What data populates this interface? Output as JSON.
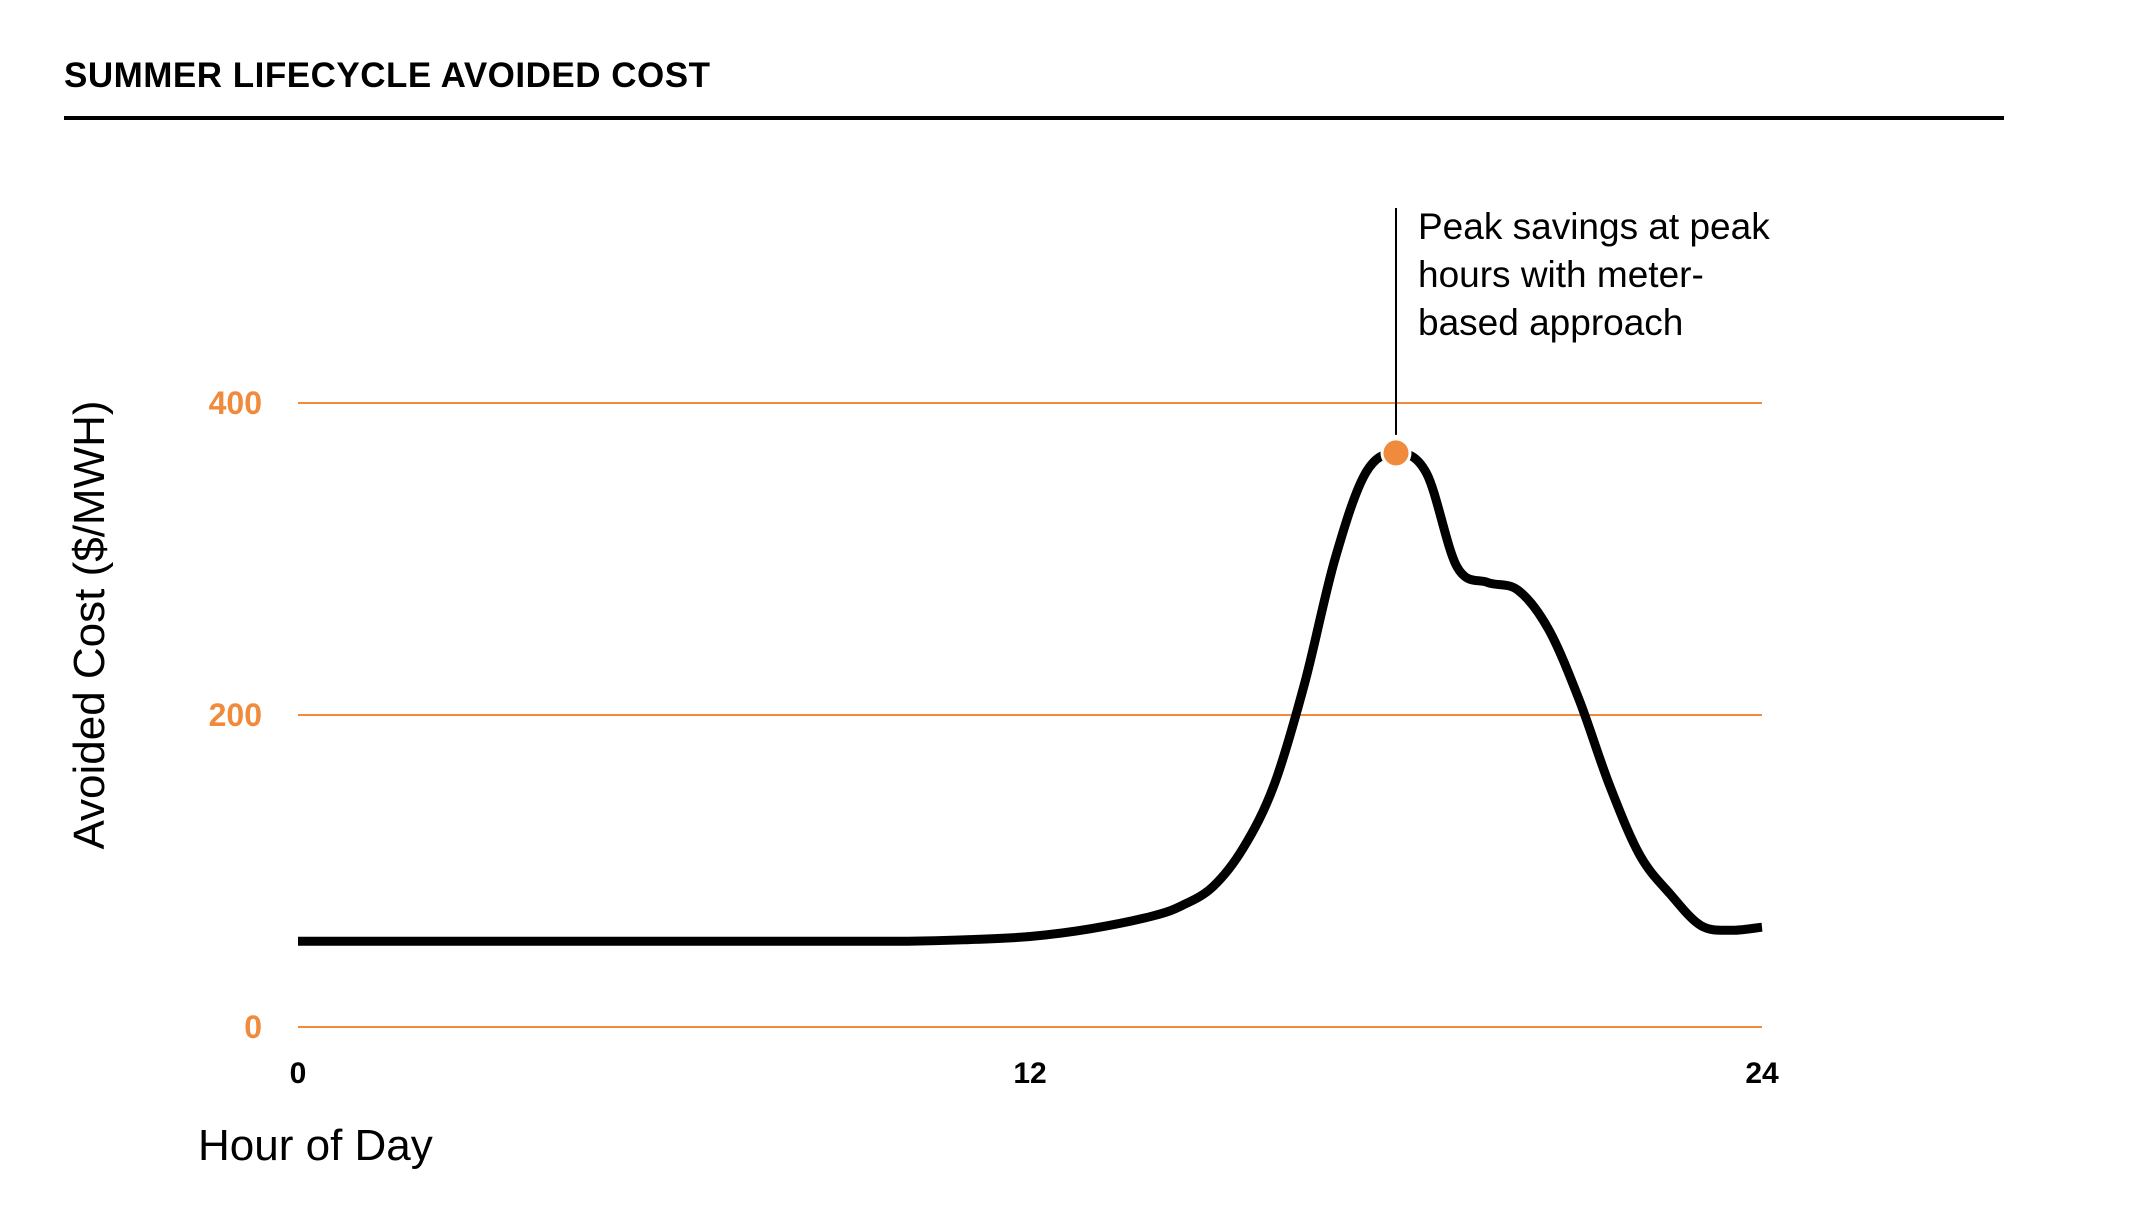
{
  "header": {
    "title": "SUMMER LIFECYCLE AVOIDED COST"
  },
  "colors": {
    "accent": "#f08a3c",
    "line": "#000000",
    "grid": "#f08a3c"
  },
  "chart_data": {
    "type": "line",
    "title": "SUMMER LIFECYCLE AVOIDED COST",
    "xlabel": "Hour of Day",
    "ylabel": "Avoided Cost ($/MWH)",
    "xlim": [
      0,
      24
    ],
    "ylim": [
      0,
      400
    ],
    "x_ticks": [
      {
        "value": 0,
        "label": "0"
      },
      {
        "value": 12,
        "label": "12"
      },
      {
        "value": 24,
        "label": "24"
      }
    ],
    "y_ticks": [
      {
        "value": 0,
        "label": "0"
      },
      {
        "value": 200,
        "label": "200"
      },
      {
        "value": 400,
        "label": "400"
      }
    ],
    "grid": "horizontal",
    "series": [
      {
        "x": [
          0,
          2,
          4,
          6,
          8,
          10,
          11,
          12,
          13,
          14,
          14.5,
          15,
          15.5,
          16,
          16.5,
          17,
          17.5,
          18,
          18.5,
          19,
          19.5,
          20,
          20.5,
          21,
          21.5,
          22,
          22.5,
          23,
          23.5,
          24
        ],
        "values": [
          55,
          55,
          55,
          55,
          55,
          55,
          56,
          58,
          63,
          71,
          78,
          90,
          115,
          155,
          220,
          300,
          355,
          368,
          355,
          295,
          285,
          280,
          255,
          210,
          155,
          110,
          85,
          65,
          62,
          64
        ]
      }
    ],
    "highlight": {
      "x": 18,
      "y": 368
    },
    "annotations": [
      {
        "x": 18,
        "lines": [
          "Peak savings at peak",
          "hours with meter-",
          "based approach"
        ]
      }
    ]
  }
}
